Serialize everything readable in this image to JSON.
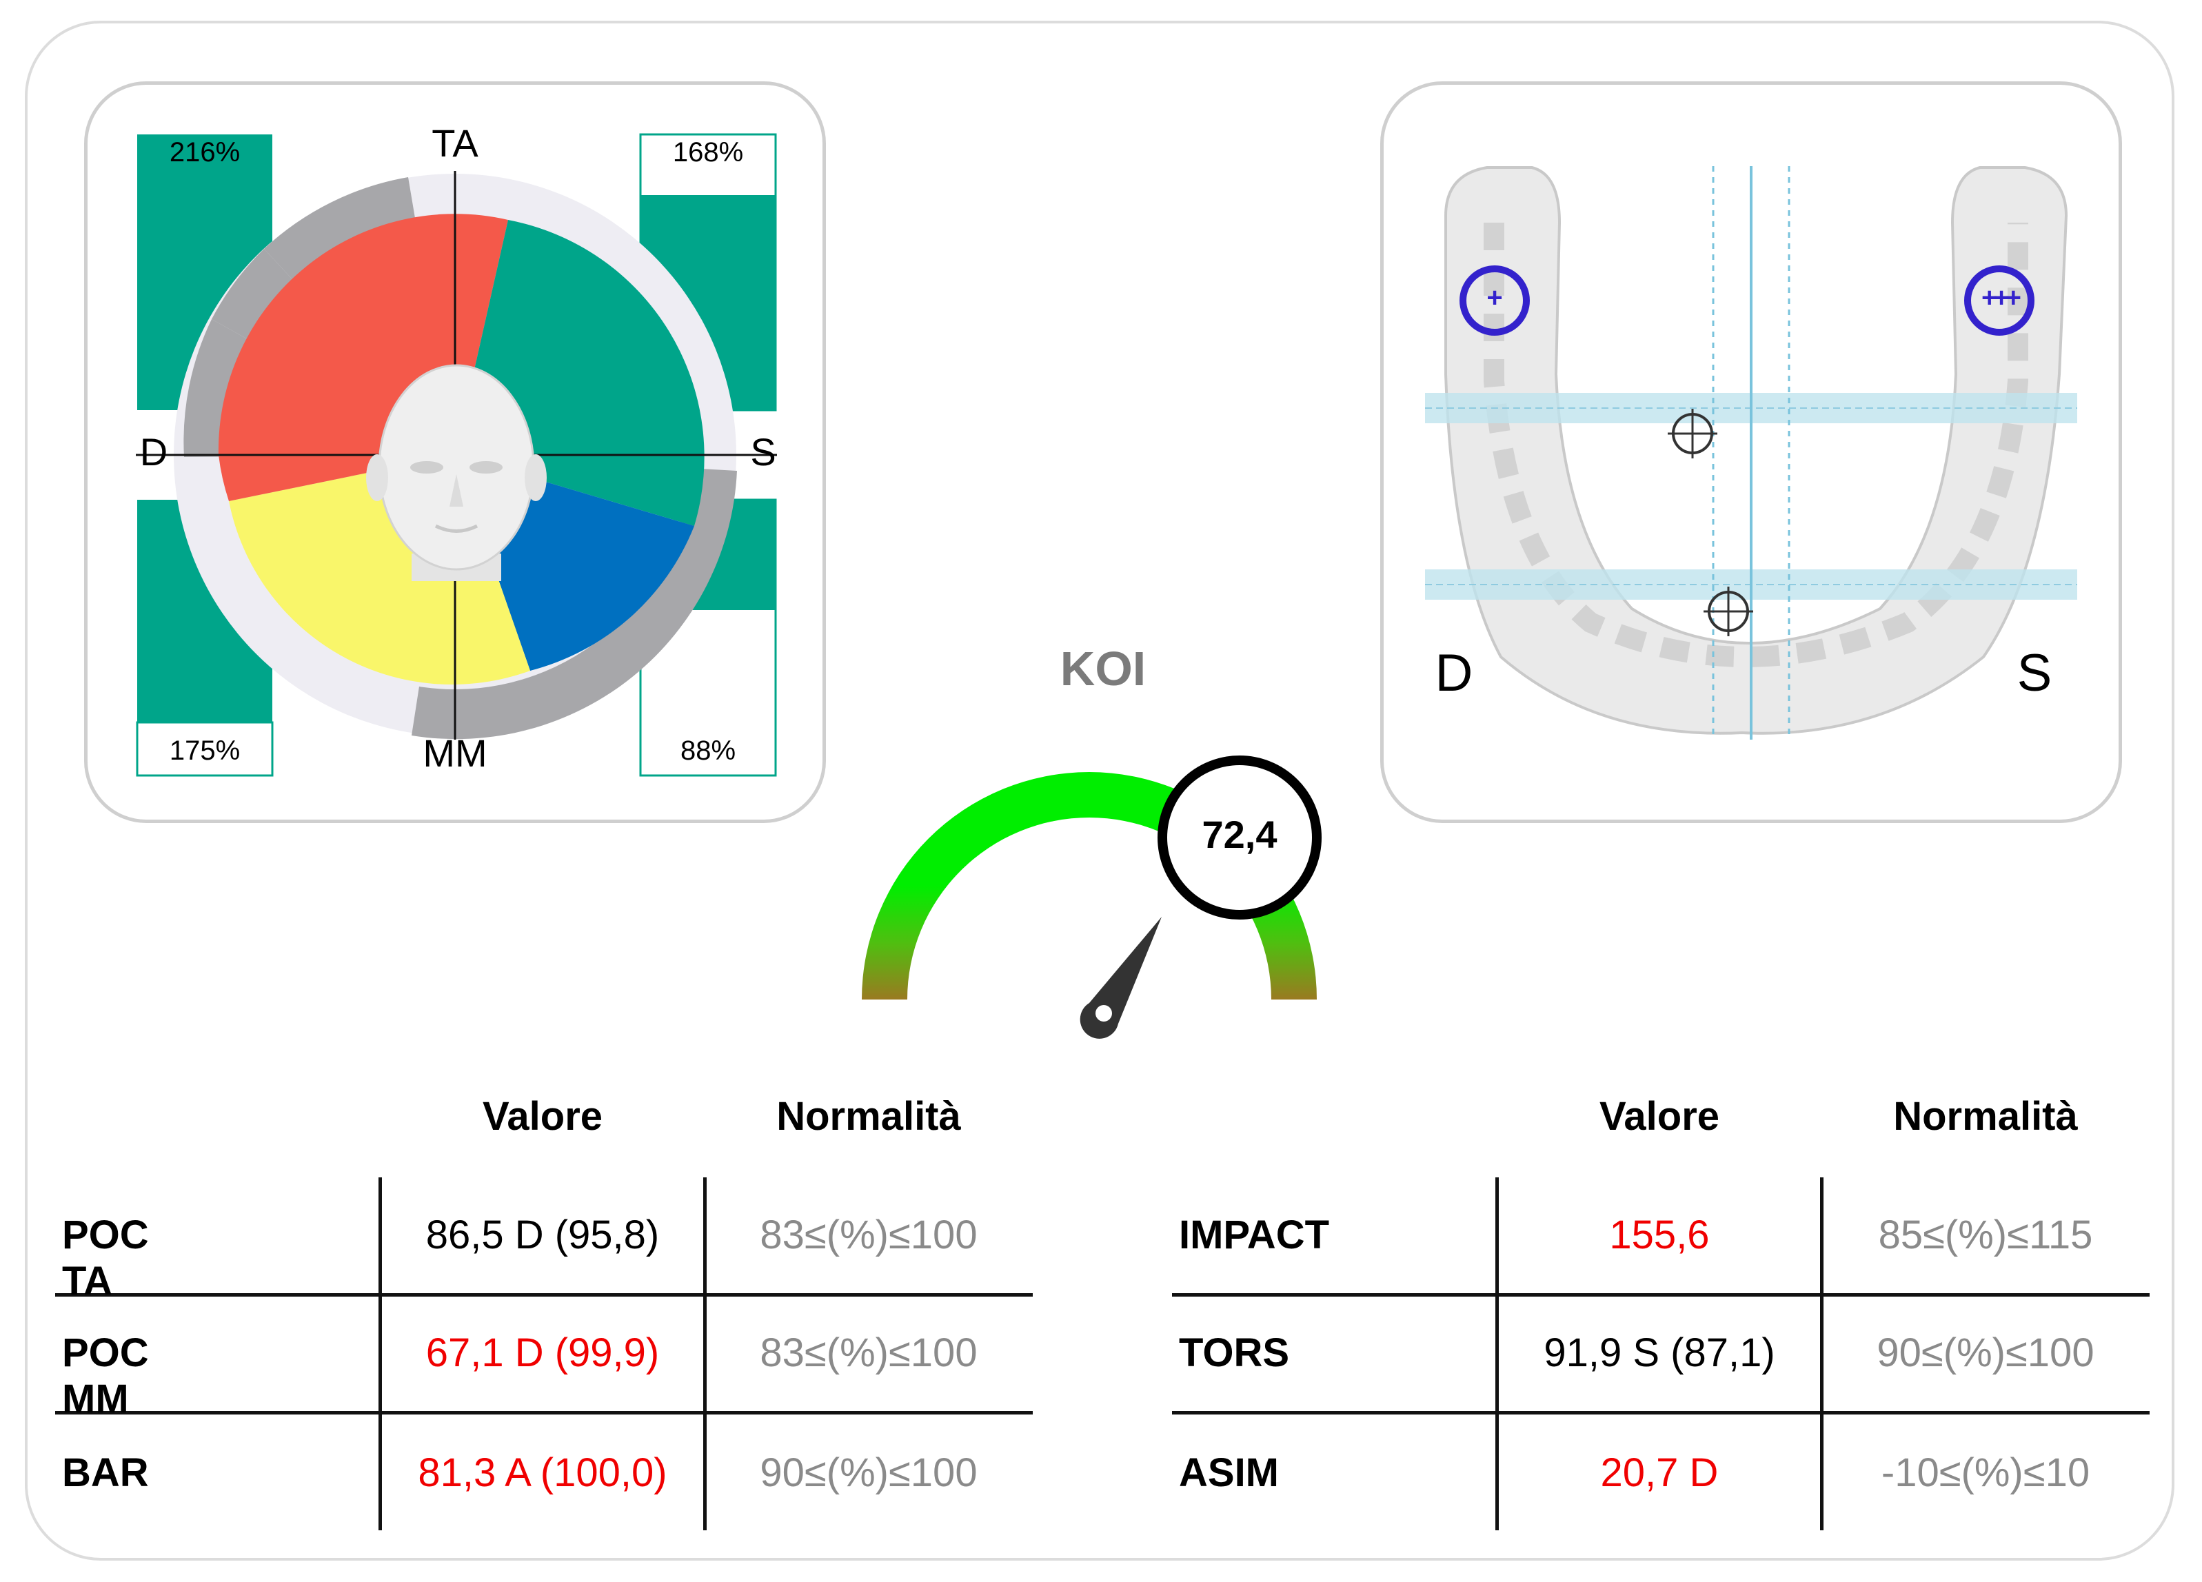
{
  "left_panel": {
    "axis_top": "TA",
    "axis_bottom": "MM",
    "axis_left": "D",
    "axis_right": "S",
    "pct_top_left": "216%",
    "pct_top_right": "168%",
    "pct_bottom_left": "175%",
    "pct_bottom_right": "88%",
    "colors": {
      "red": "#f4594a",
      "green": "#00a58a",
      "yellow": "#f9f66a",
      "blue": "#0070c0",
      "ring_gray": "#a7a7aa",
      "ring_light": "#eeedf3"
    }
  },
  "right_panel": {
    "label_left": "D",
    "label_right": "S",
    "marker_left": "+",
    "marker_right": "+++"
  },
  "koi": {
    "title": "KOI",
    "value": "72,4",
    "value_numeric": 72.4,
    "arc_color": "#00ee00"
  },
  "table_left": {
    "headers": [
      "Valore",
      "Normalità"
    ],
    "rows": [
      {
        "label": "POC TA",
        "value": "86,5 D (95,8)",
        "normal": "83≤(%)≤100",
        "value_red": false
      },
      {
        "label": "POC MM",
        "value": "67,1 D (99,9)",
        "normal": "83≤(%)≤100",
        "value_red": true
      },
      {
        "label": "BAR",
        "value": "81,3 A (100,0)",
        "normal": "90≤(%)≤100",
        "value_red": true
      }
    ]
  },
  "table_right": {
    "headers": [
      "Valore",
      "Normalità"
    ],
    "rows": [
      {
        "label": "IMPACT",
        "value": "155,6",
        "normal": "85≤(%)≤115",
        "value_red": true
      },
      {
        "label": "TORS",
        "value": "91,9 S (87,1)",
        "normal": "90≤(%)≤100",
        "value_red": false
      },
      {
        "label": "ASIM",
        "value": "20,7 D",
        "normal": "-10≤(%)≤10",
        "value_red": true
      }
    ]
  }
}
